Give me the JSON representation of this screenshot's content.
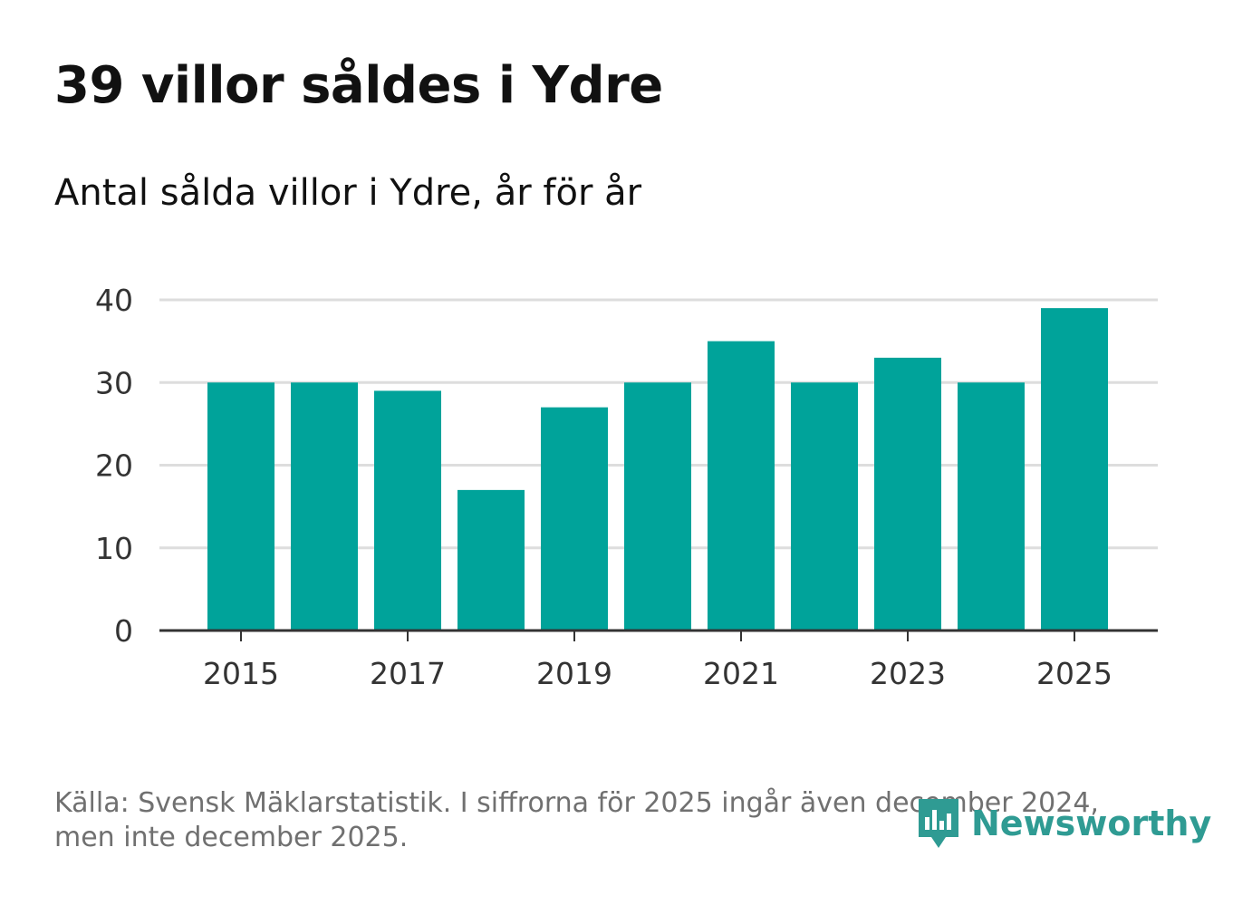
{
  "title": "39 villor såldes i Ydre",
  "subtitle": "Antal sålda villor i Ydre, år för år",
  "footer": {
    "source": "Källa: Svensk Mäklarstatistik. I siffrorna för 2025 ingår även december 2024,",
    "note": "men inte december 2025."
  },
  "brand": {
    "name": "Newsworthy",
    "icon": "newsworthy-logo-icon",
    "color": "#2f9b93"
  },
  "colors": {
    "bar": "#00a39a",
    "grid": "#dddddd",
    "axis": "#333333",
    "tick_text": "#333333"
  },
  "chart_data": {
    "type": "bar",
    "title": "39 villor såldes i Ydre",
    "subtitle": "Antal sålda villor i Ydre, år för år",
    "categories": [
      "2015",
      "2016",
      "2017",
      "2018",
      "2019",
      "2020",
      "2021",
      "2022",
      "2023",
      "2024",
      "2025"
    ],
    "values": [
      30,
      30,
      29,
      17,
      27,
      30,
      35,
      30,
      33,
      30,
      39
    ],
    "x_tick_labels": [
      "2015",
      "2017",
      "2019",
      "2021",
      "2023",
      "2025"
    ],
    "yticks": [
      0,
      10,
      20,
      30,
      40
    ],
    "ylim": [
      0,
      40
    ],
    "xlabel": "",
    "ylabel": "",
    "grid": true,
    "legend": "none"
  }
}
